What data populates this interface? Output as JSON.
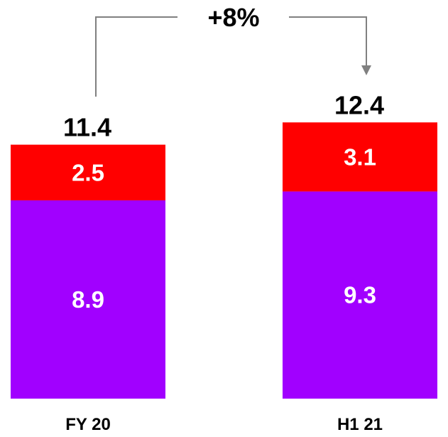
{
  "chart_data": {
    "type": "bar",
    "stacked": true,
    "categories": [
      "FY 20",
      "H1 21"
    ],
    "series": [
      {
        "values": [
          8.9,
          9.3
        ],
        "color": "#A100FF"
      },
      {
        "values": [
          2.5,
          3.1
        ],
        "color": "#FF0000"
      }
    ],
    "totals": [
      "11.4",
      "12.4"
    ],
    "segment_labels": [
      [
        "8.9",
        "9.3"
      ],
      [
        "2.5",
        "3.1"
      ]
    ],
    "annotation": "+8%",
    "annotation_color": "#808080",
    "grid": false,
    "legend": "none"
  }
}
